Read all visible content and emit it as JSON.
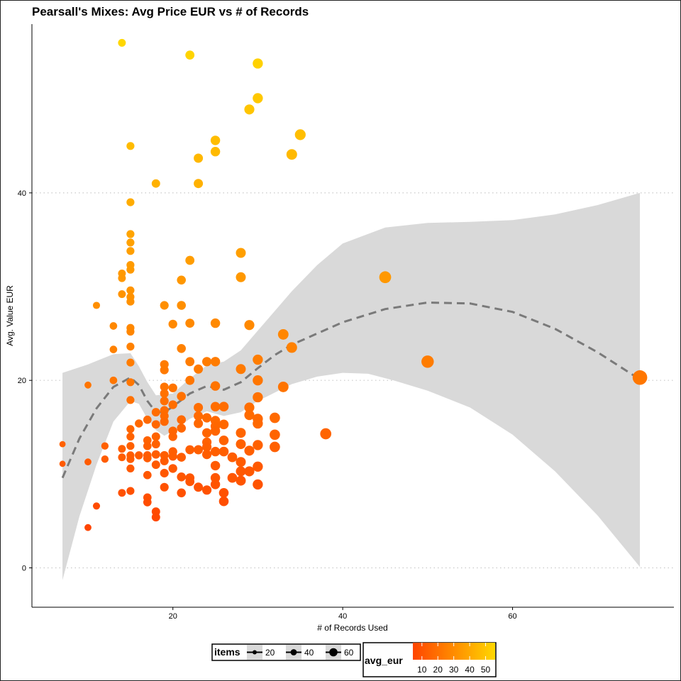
{
  "chart_data": {
    "type": "scatter",
    "title": "Pearsall's Mixes: Avg Price EUR vs # of Records",
    "xlabel": "# of Records Used",
    "ylabel": "Avg. Value EUR",
    "xlim": [
      3.4,
      79
    ],
    "ylim": [
      -4.2,
      58
    ],
    "xticks": [
      20,
      40,
      60
    ],
    "yticks": [
      0,
      20,
      40
    ],
    "grid": "horizontal-dotted",
    "color_scale": {
      "name": "avg_eur",
      "low": "#FF4500",
      "high": "#FFD700",
      "ticks": [
        10,
        20,
        30,
        40,
        50
      ],
      "domain": [
        4.3,
        56
      ]
    },
    "size_scale": {
      "name": "items",
      "ticks": [
        20,
        40,
        60
      ]
    },
    "smooth_line": [
      {
        "x": 7,
        "y": 9.6
      },
      {
        "x": 9,
        "y": 13.8
      },
      {
        "x": 11,
        "y": 17.0
      },
      {
        "x": 13,
        "y": 19.3
      },
      {
        "x": 15,
        "y": 20.3
      },
      {
        "x": 16,
        "y": 19.5
      },
      {
        "x": 17,
        "y": 17.8
      },
      {
        "x": 18,
        "y": 16.6
      },
      {
        "x": 19,
        "y": 16.6
      },
      {
        "x": 20,
        "y": 17.2
      },
      {
        "x": 22,
        "y": 18.6
      },
      {
        "x": 24,
        "y": 19.4
      },
      {
        "x": 26,
        "y": 19.0
      },
      {
        "x": 28,
        "y": 19.8
      },
      {
        "x": 30,
        "y": 21.3
      },
      {
        "x": 32,
        "y": 22.7
      },
      {
        "x": 34,
        "y": 23.8
      },
      {
        "x": 37,
        "y": 25.0
      },
      {
        "x": 40,
        "y": 26.2
      },
      {
        "x": 45,
        "y": 27.6
      },
      {
        "x": 50,
        "y": 28.3
      },
      {
        "x": 55,
        "y": 28.2
      },
      {
        "x": 60,
        "y": 27.3
      },
      {
        "x": 65,
        "y": 25.5
      },
      {
        "x": 70,
        "y": 23.0
      },
      {
        "x": 75,
        "y": 20.1
      }
    ],
    "ribbon_upper": [
      {
        "x": 7,
        "y": 20.8
      },
      {
        "x": 10,
        "y": 21.7
      },
      {
        "x": 13,
        "y": 22.8
      },
      {
        "x": 15,
        "y": 22.9
      },
      {
        "x": 16,
        "y": 21.5
      },
      {
        "x": 17,
        "y": 19.8
      },
      {
        "x": 18,
        "y": 18.4
      },
      {
        "x": 20,
        "y": 18.6
      },
      {
        "x": 22,
        "y": 20.2
      },
      {
        "x": 24,
        "y": 21.6
      },
      {
        "x": 26,
        "y": 22.0
      },
      {
        "x": 28,
        "y": 23.2
      },
      {
        "x": 30,
        "y": 25.3
      },
      {
        "x": 32,
        "y": 27.4
      },
      {
        "x": 34,
        "y": 29.5
      },
      {
        "x": 37,
        "y": 32.3
      },
      {
        "x": 40,
        "y": 34.6
      },
      {
        "x": 45,
        "y": 36.3
      },
      {
        "x": 50,
        "y": 36.8
      },
      {
        "x": 55,
        "y": 36.9
      },
      {
        "x": 60,
        "y": 37.1
      },
      {
        "x": 65,
        "y": 37.7
      },
      {
        "x": 70,
        "y": 38.7
      },
      {
        "x": 75,
        "y": 40.0
      }
    ],
    "ribbon_lower": [
      {
        "x": 7,
        "y": -1.3
      },
      {
        "x": 9,
        "y": 5.5
      },
      {
        "x": 11,
        "y": 11.0
      },
      {
        "x": 13,
        "y": 15.6
      },
      {
        "x": 15,
        "y": 17.8
      },
      {
        "x": 16,
        "y": 17.5
      },
      {
        "x": 17,
        "y": 15.9
      },
      {
        "x": 18,
        "y": 14.7
      },
      {
        "x": 19,
        "y": 14.1
      },
      {
        "x": 20,
        "y": 14.6
      },
      {
        "x": 22,
        "y": 15.9
      },
      {
        "x": 24,
        "y": 16.7
      },
      {
        "x": 26,
        "y": 16.2
      },
      {
        "x": 28,
        "y": 16.6
      },
      {
        "x": 30,
        "y": 17.8
      },
      {
        "x": 32,
        "y": 18.7
      },
      {
        "x": 34,
        "y": 19.6
      },
      {
        "x": 37,
        "y": 20.4
      },
      {
        "x": 40,
        "y": 20.8
      },
      {
        "x": 43,
        "y": 20.7
      },
      {
        "x": 46,
        "y": 20.0
      },
      {
        "x": 50,
        "y": 18.9
      },
      {
        "x": 55,
        "y": 17.1
      },
      {
        "x": 60,
        "y": 14.2
      },
      {
        "x": 65,
        "y": 10.3
      },
      {
        "x": 70,
        "y": 5.6
      },
      {
        "x": 75,
        "y": 0.1
      }
    ],
    "points": [
      {
        "x": 7,
        "y": 13.2,
        "items": 7
      },
      {
        "x": 7,
        "y": 11.1,
        "items": 7
      },
      {
        "x": 10,
        "y": 19.5,
        "items": 10
      },
      {
        "x": 10,
        "y": 11.3,
        "items": 10
      },
      {
        "x": 10,
        "y": 4.3,
        "items": 10
      },
      {
        "x": 11,
        "y": 28.0,
        "items": 11
      },
      {
        "x": 11,
        "y": 6.6,
        "items": 11
      },
      {
        "x": 12,
        "y": 13.0,
        "items": 12
      },
      {
        "x": 12,
        "y": 11.6,
        "items": 12
      },
      {
        "x": 13,
        "y": 25.8,
        "items": 13
      },
      {
        "x": 13,
        "y": 23.3,
        "items": 13
      },
      {
        "x": 13,
        "y": 20.0,
        "items": 13
      },
      {
        "x": 14,
        "y": 56.0,
        "items": 14
      },
      {
        "x": 14,
        "y": 31.4,
        "items": 14
      },
      {
        "x": 14,
        "y": 30.9,
        "items": 14
      },
      {
        "x": 14,
        "y": 29.2,
        "items": 14
      },
      {
        "x": 14,
        "y": 12.7,
        "items": 14
      },
      {
        "x": 14,
        "y": 11.8,
        "items": 14
      },
      {
        "x": 14,
        "y": 8.0,
        "items": 14
      },
      {
        "x": 15,
        "y": 45.0,
        "items": 15
      },
      {
        "x": 15,
        "y": 39.0,
        "items": 15
      },
      {
        "x": 15,
        "y": 35.6,
        "items": 15
      },
      {
        "x": 15,
        "y": 34.7,
        "items": 15
      },
      {
        "x": 15,
        "y": 33.8,
        "items": 15
      },
      {
        "x": 15,
        "y": 32.3,
        "items": 15
      },
      {
        "x": 15,
        "y": 31.8,
        "items": 15
      },
      {
        "x": 15,
        "y": 29.6,
        "items": 15
      },
      {
        "x": 15,
        "y": 28.9,
        "items": 15
      },
      {
        "x": 15,
        "y": 28.4,
        "items": 15
      },
      {
        "x": 15,
        "y": 25.6,
        "items": 15
      },
      {
        "x": 15,
        "y": 25.2,
        "items": 15
      },
      {
        "x": 15,
        "y": 23.6,
        "items": 15
      },
      {
        "x": 15,
        "y": 21.9,
        "items": 15
      },
      {
        "x": 15,
        "y": 19.8,
        "items": 15
      },
      {
        "x": 15,
        "y": 17.9,
        "items": 15
      },
      {
        "x": 15,
        "y": 14.8,
        "items": 15
      },
      {
        "x": 15,
        "y": 14.0,
        "items": 15
      },
      {
        "x": 15,
        "y": 13.0,
        "items": 15
      },
      {
        "x": 15,
        "y": 12.0,
        "items": 15
      },
      {
        "x": 15,
        "y": 11.6,
        "items": 15
      },
      {
        "x": 15,
        "y": 10.6,
        "items": 15
      },
      {
        "x": 15,
        "y": 8.2,
        "items": 15
      },
      {
        "x": 16,
        "y": 15.4,
        "items": 16
      },
      {
        "x": 16,
        "y": 12.0,
        "items": 16
      },
      {
        "x": 17,
        "y": 15.8,
        "items": 17
      },
      {
        "x": 17,
        "y": 13.6,
        "items": 17
      },
      {
        "x": 17,
        "y": 13.0,
        "items": 17
      },
      {
        "x": 17,
        "y": 12.0,
        "items": 17
      },
      {
        "x": 17,
        "y": 11.7,
        "items": 17
      },
      {
        "x": 17,
        "y": 9.9,
        "items": 17
      },
      {
        "x": 17,
        "y": 7.5,
        "items": 17
      },
      {
        "x": 17,
        "y": 7.0,
        "items": 17
      },
      {
        "x": 18,
        "y": 41.0,
        "items": 18
      },
      {
        "x": 18,
        "y": 16.6,
        "items": 18
      },
      {
        "x": 18,
        "y": 15.3,
        "items": 18
      },
      {
        "x": 18,
        "y": 14.0,
        "items": 18
      },
      {
        "x": 18,
        "y": 13.2,
        "items": 18
      },
      {
        "x": 18,
        "y": 12.1,
        "items": 18
      },
      {
        "x": 18,
        "y": 11.0,
        "items": 18
      },
      {
        "x": 18,
        "y": 6.0,
        "items": 18
      },
      {
        "x": 18,
        "y": 5.4,
        "items": 18
      },
      {
        "x": 19,
        "y": 28.0,
        "items": 19
      },
      {
        "x": 19,
        "y": 21.7,
        "items": 19
      },
      {
        "x": 19,
        "y": 21.1,
        "items": 19
      },
      {
        "x": 19,
        "y": 19.3,
        "items": 19
      },
      {
        "x": 19,
        "y": 18.6,
        "items": 19
      },
      {
        "x": 19,
        "y": 17.8,
        "items": 19
      },
      {
        "x": 19,
        "y": 16.8,
        "items": 19
      },
      {
        "x": 19,
        "y": 16.2,
        "items": 19
      },
      {
        "x": 19,
        "y": 15.6,
        "items": 19
      },
      {
        "x": 19,
        "y": 12.0,
        "items": 19
      },
      {
        "x": 19,
        "y": 11.4,
        "items": 19
      },
      {
        "x": 19,
        "y": 10.1,
        "items": 19
      },
      {
        "x": 19,
        "y": 8.6,
        "items": 19
      },
      {
        "x": 20,
        "y": 26.0,
        "items": 20
      },
      {
        "x": 20,
        "y": 19.2,
        "items": 20
      },
      {
        "x": 20,
        "y": 17.4,
        "items": 20
      },
      {
        "x": 20,
        "y": 14.6,
        "items": 20
      },
      {
        "x": 20,
        "y": 14.0,
        "items": 20
      },
      {
        "x": 20,
        "y": 12.4,
        "items": 20
      },
      {
        "x": 20,
        "y": 11.9,
        "items": 20
      },
      {
        "x": 20,
        "y": 10.6,
        "items": 20
      },
      {
        "x": 21,
        "y": 30.7,
        "items": 21
      },
      {
        "x": 21,
        "y": 28.0,
        "items": 21
      },
      {
        "x": 21,
        "y": 23.4,
        "items": 21
      },
      {
        "x": 21,
        "y": 18.3,
        "items": 21
      },
      {
        "x": 21,
        "y": 15.8,
        "items": 21
      },
      {
        "x": 21,
        "y": 14.9,
        "items": 21
      },
      {
        "x": 21,
        "y": 11.8,
        "items": 21
      },
      {
        "x": 21,
        "y": 9.7,
        "items": 21
      },
      {
        "x": 21,
        "y": 8.0,
        "items": 21
      },
      {
        "x": 22,
        "y": 54.7,
        "items": 22
      },
      {
        "x": 22,
        "y": 32.8,
        "items": 22
      },
      {
        "x": 22,
        "y": 26.1,
        "items": 22
      },
      {
        "x": 22,
        "y": 22.0,
        "items": 22
      },
      {
        "x": 22,
        "y": 20.0,
        "items": 22
      },
      {
        "x": 22,
        "y": 12.6,
        "items": 22
      },
      {
        "x": 22,
        "y": 9.6,
        "items": 22
      },
      {
        "x": 22,
        "y": 9.2,
        "items": 22
      },
      {
        "x": 23,
        "y": 43.7,
        "items": 23
      },
      {
        "x": 23,
        "y": 41.0,
        "items": 23
      },
      {
        "x": 23,
        "y": 21.2,
        "items": 23
      },
      {
        "x": 23,
        "y": 17.1,
        "items": 23
      },
      {
        "x": 23,
        "y": 16.2,
        "items": 23
      },
      {
        "x": 23,
        "y": 15.4,
        "items": 23
      },
      {
        "x": 23,
        "y": 12.6,
        "items": 23
      },
      {
        "x": 23,
        "y": 8.6,
        "items": 23
      },
      {
        "x": 24,
        "y": 22.0,
        "items": 24
      },
      {
        "x": 24,
        "y": 16.0,
        "items": 24
      },
      {
        "x": 24,
        "y": 14.4,
        "items": 24
      },
      {
        "x": 24,
        "y": 13.4,
        "items": 24
      },
      {
        "x": 24,
        "y": 12.9,
        "items": 24
      },
      {
        "x": 24,
        "y": 12.1,
        "items": 24
      },
      {
        "x": 24,
        "y": 8.3,
        "items": 24
      },
      {
        "x": 25,
        "y": 45.6,
        "items": 25
      },
      {
        "x": 25,
        "y": 44.4,
        "items": 25
      },
      {
        "x": 25,
        "y": 26.1,
        "items": 25
      },
      {
        "x": 25,
        "y": 22.0,
        "items": 25
      },
      {
        "x": 25,
        "y": 19.4,
        "items": 25
      },
      {
        "x": 25,
        "y": 17.2,
        "items": 25
      },
      {
        "x": 25,
        "y": 15.7,
        "items": 25
      },
      {
        "x": 25,
        "y": 15.1,
        "items": 25
      },
      {
        "x": 25,
        "y": 14.6,
        "items": 25
      },
      {
        "x": 25,
        "y": 12.4,
        "items": 25
      },
      {
        "x": 25,
        "y": 10.9,
        "items": 25
      },
      {
        "x": 25,
        "y": 9.6,
        "items": 25
      },
      {
        "x": 25,
        "y": 8.9,
        "items": 25
      },
      {
        "x": 26,
        "y": 17.2,
        "items": 26
      },
      {
        "x": 26,
        "y": 15.3,
        "items": 26
      },
      {
        "x": 26,
        "y": 13.6,
        "items": 26
      },
      {
        "x": 26,
        "y": 12.4,
        "items": 26
      },
      {
        "x": 26,
        "y": 8.0,
        "items": 26
      },
      {
        "x": 26,
        "y": 7.1,
        "items": 26
      },
      {
        "x": 27,
        "y": 11.8,
        "items": 27
      },
      {
        "x": 27,
        "y": 9.6,
        "items": 27
      },
      {
        "x": 28,
        "y": 33.6,
        "items": 28
      },
      {
        "x": 28,
        "y": 31.0,
        "items": 28
      },
      {
        "x": 28,
        "y": 21.2,
        "items": 28
      },
      {
        "x": 28,
        "y": 14.4,
        "items": 28
      },
      {
        "x": 28,
        "y": 13.2,
        "items": 28
      },
      {
        "x": 28,
        "y": 11.3,
        "items": 28
      },
      {
        "x": 28,
        "y": 10.3,
        "items": 28
      },
      {
        "x": 28,
        "y": 9.3,
        "items": 28
      },
      {
        "x": 29,
        "y": 48.9,
        "items": 29
      },
      {
        "x": 29,
        "y": 25.9,
        "items": 29
      },
      {
        "x": 29,
        "y": 17.1,
        "items": 29
      },
      {
        "x": 29,
        "y": 16.3,
        "items": 29
      },
      {
        "x": 29,
        "y": 12.5,
        "items": 29
      },
      {
        "x": 29,
        "y": 10.3,
        "items": 29
      },
      {
        "x": 30,
        "y": 53.8,
        "items": 30
      },
      {
        "x": 30,
        "y": 50.1,
        "items": 30
      },
      {
        "x": 30,
        "y": 22.2,
        "items": 30
      },
      {
        "x": 30,
        "y": 20.0,
        "items": 30
      },
      {
        "x": 30,
        "y": 18.2,
        "items": 30
      },
      {
        "x": 30,
        "y": 15.9,
        "items": 30
      },
      {
        "x": 30,
        "y": 15.4,
        "items": 30
      },
      {
        "x": 30,
        "y": 13.1,
        "items": 30
      },
      {
        "x": 30,
        "y": 10.8,
        "items": 30
      },
      {
        "x": 30,
        "y": 8.9,
        "items": 30
      },
      {
        "x": 32,
        "y": 16.0,
        "items": 32
      },
      {
        "x": 32,
        "y": 14.2,
        "items": 32
      },
      {
        "x": 32,
        "y": 12.9,
        "items": 32
      },
      {
        "x": 33,
        "y": 24.9,
        "items": 33
      },
      {
        "x": 33,
        "y": 19.3,
        "items": 33
      },
      {
        "x": 34,
        "y": 44.1,
        "items": 34
      },
      {
        "x": 34,
        "y": 23.5,
        "items": 34
      },
      {
        "x": 35,
        "y": 46.2,
        "items": 35
      },
      {
        "x": 38,
        "y": 14.3,
        "items": 38
      },
      {
        "x": 45,
        "y": 31.0,
        "items": 45
      },
      {
        "x": 50,
        "y": 22.0,
        "items": 50
      },
      {
        "x": 75,
        "y": 20.3,
        "items": 75
      }
    ]
  }
}
